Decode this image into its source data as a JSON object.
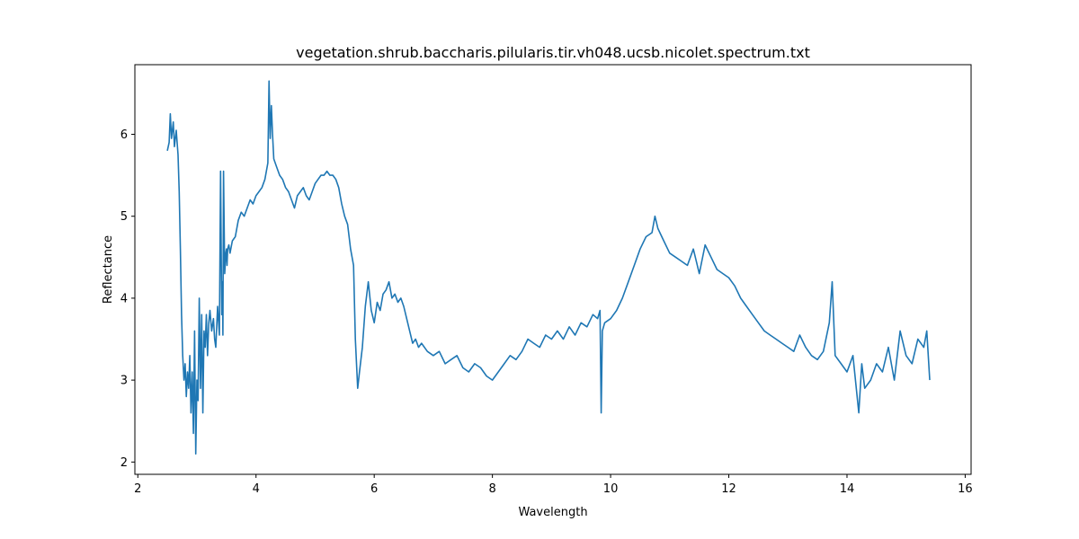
{
  "chart_data": {
    "type": "line",
    "title": "vegetation.shrub.baccharis.pilularis.tir.vh048.ucsb.nicolet.spectrum.txt",
    "xlabel": "Wavelength",
    "ylabel": "Reflectance",
    "xlim": [
      1.95,
      16.1
    ],
    "ylim": [
      1.85,
      6.85
    ],
    "xticks": [
      2,
      4,
      6,
      8,
      10,
      12,
      14,
      16
    ],
    "yticks": [
      2,
      3,
      4,
      5,
      6
    ],
    "grid": false,
    "line_color": "#1f77b4",
    "series": [
      {
        "x": [
          2.5,
          2.53,
          2.55,
          2.57,
          2.6,
          2.62,
          2.65,
          2.68,
          2.7,
          2.72,
          2.74,
          2.76,
          2.78,
          2.8,
          2.82,
          2.84,
          2.86,
          2.88,
          2.9,
          2.92,
          2.94,
          2.96,
          2.98,
          3.0,
          3.02,
          3.04,
          3.06,
          3.08,
          3.1,
          3.12,
          3.14,
          3.16,
          3.18,
          3.2,
          3.22,
          3.25,
          3.28,
          3.3,
          3.32,
          3.35,
          3.38,
          3.4,
          3.42,
          3.43,
          3.44,
          3.45,
          3.47,
          3.49,
          3.5,
          3.51,
          3.52,
          3.54,
          3.56,
          3.6,
          3.65,
          3.7,
          3.75,
          3.8,
          3.85,
          3.9,
          3.95,
          4.0,
          4.05,
          4.1,
          4.15,
          4.2,
          4.22,
          4.24,
          4.26,
          4.28,
          4.3,
          4.35,
          4.4,
          4.45,
          4.5,
          4.55,
          4.6,
          4.65,
          4.7,
          4.75,
          4.8,
          4.85,
          4.9,
          4.95,
          5.0,
          5.05,
          5.1,
          5.15,
          5.2,
          5.25,
          5.3,
          5.35,
          5.4,
          5.45,
          5.5,
          5.55,
          5.6,
          5.65,
          5.68,
          5.7,
          5.72,
          5.75,
          5.8,
          5.85,
          5.9,
          5.95,
          6.0,
          6.05,
          6.1,
          6.15,
          6.2,
          6.25,
          6.3,
          6.35,
          6.4,
          6.45,
          6.5,
          6.55,
          6.6,
          6.65,
          6.7,
          6.75,
          6.8,
          6.9,
          7.0,
          7.1,
          7.2,
          7.3,
          7.4,
          7.5,
          7.6,
          7.7,
          7.8,
          7.9,
          8.0,
          8.1,
          8.2,
          8.3,
          8.4,
          8.5,
          8.6,
          8.7,
          8.8,
          8.9,
          9.0,
          9.1,
          9.2,
          9.3,
          9.4,
          9.5,
          9.6,
          9.7,
          9.78,
          9.82,
          9.84,
          9.86,
          9.9,
          10.0,
          10.1,
          10.2,
          10.3,
          10.4,
          10.5,
          10.6,
          10.7,
          10.75,
          10.8,
          10.9,
          11.0,
          11.1,
          11.2,
          11.3,
          11.4,
          11.5,
          11.6,
          11.7,
          11.8,
          11.9,
          12.0,
          12.1,
          12.2,
          12.3,
          12.4,
          12.5,
          12.6,
          12.7,
          12.8,
          12.9,
          13.0,
          13.1,
          13.2,
          13.3,
          13.4,
          13.5,
          13.6,
          13.7,
          13.75,
          13.8,
          13.9,
          14.0,
          14.1,
          14.2,
          14.25,
          14.3,
          14.4,
          14.5,
          14.6,
          14.7,
          14.8,
          14.9,
          15.0,
          15.1,
          15.2,
          15.3,
          15.35,
          15.4
        ],
        "y": [
          5.8,
          5.9,
          6.25,
          5.95,
          6.15,
          5.85,
          6.05,
          5.75,
          5.3,
          4.6,
          3.8,
          3.3,
          3.0,
          3.2,
          2.8,
          3.1,
          2.9,
          3.3,
          2.6,
          3.1,
          2.35,
          3.6,
          2.1,
          3.0,
          2.75,
          4.0,
          2.9,
          3.8,
          2.6,
          3.6,
          3.4,
          3.8,
          3.3,
          3.7,
          3.85,
          3.6,
          3.75,
          3.5,
          3.4,
          3.9,
          3.55,
          5.55,
          3.8,
          4.2,
          3.55,
          5.55,
          4.3,
          4.55,
          4.6,
          4.4,
          4.6,
          4.65,
          4.55,
          4.7,
          4.75,
          4.95,
          5.05,
          5.0,
          5.1,
          5.2,
          5.15,
          5.25,
          5.3,
          5.35,
          5.45,
          5.65,
          6.65,
          5.95,
          6.35,
          6.0,
          5.7,
          5.6,
          5.5,
          5.45,
          5.35,
          5.3,
          5.2,
          5.1,
          5.25,
          5.3,
          5.35,
          5.25,
          5.2,
          5.3,
          5.4,
          5.45,
          5.5,
          5.5,
          5.55,
          5.5,
          5.5,
          5.45,
          5.35,
          5.15,
          5.0,
          4.9,
          4.6,
          4.4,
          3.5,
          3.2,
          2.9,
          3.1,
          3.4,
          3.9,
          4.2,
          3.85,
          3.7,
          3.95,
          3.85,
          4.05,
          4.1,
          4.2,
          4.0,
          4.05,
          3.95,
          4.0,
          3.9,
          3.75,
          3.6,
          3.45,
          3.5,
          3.4,
          3.45,
          3.35,
          3.3,
          3.35,
          3.2,
          3.25,
          3.3,
          3.15,
          3.1,
          3.2,
          3.15,
          3.05,
          3.0,
          3.1,
          3.2,
          3.3,
          3.25,
          3.35,
          3.5,
          3.45,
          3.4,
          3.55,
          3.5,
          3.6,
          3.5,
          3.65,
          3.55,
          3.7,
          3.65,
          3.8,
          3.75,
          3.85,
          2.6,
          3.6,
          3.7,
          3.75,
          3.85,
          4.0,
          4.2,
          4.4,
          4.6,
          4.75,
          4.8,
          5.0,
          4.85,
          4.7,
          4.55,
          4.5,
          4.45,
          4.4,
          4.6,
          4.3,
          4.65,
          4.5,
          4.35,
          4.3,
          4.25,
          4.15,
          4.0,
          3.9,
          3.8,
          3.7,
          3.6,
          3.55,
          3.5,
          3.45,
          3.4,
          3.35,
          3.55,
          3.4,
          3.3,
          3.25,
          3.35,
          3.7,
          4.2,
          3.3,
          3.2,
          3.1,
          3.3,
          2.6,
          3.2,
          2.9,
          3.0,
          3.2,
          3.1,
          3.4,
          3.0,
          3.6,
          3.3,
          3.2,
          3.5,
          3.4,
          3.6,
          3.0
        ]
      }
    ]
  }
}
